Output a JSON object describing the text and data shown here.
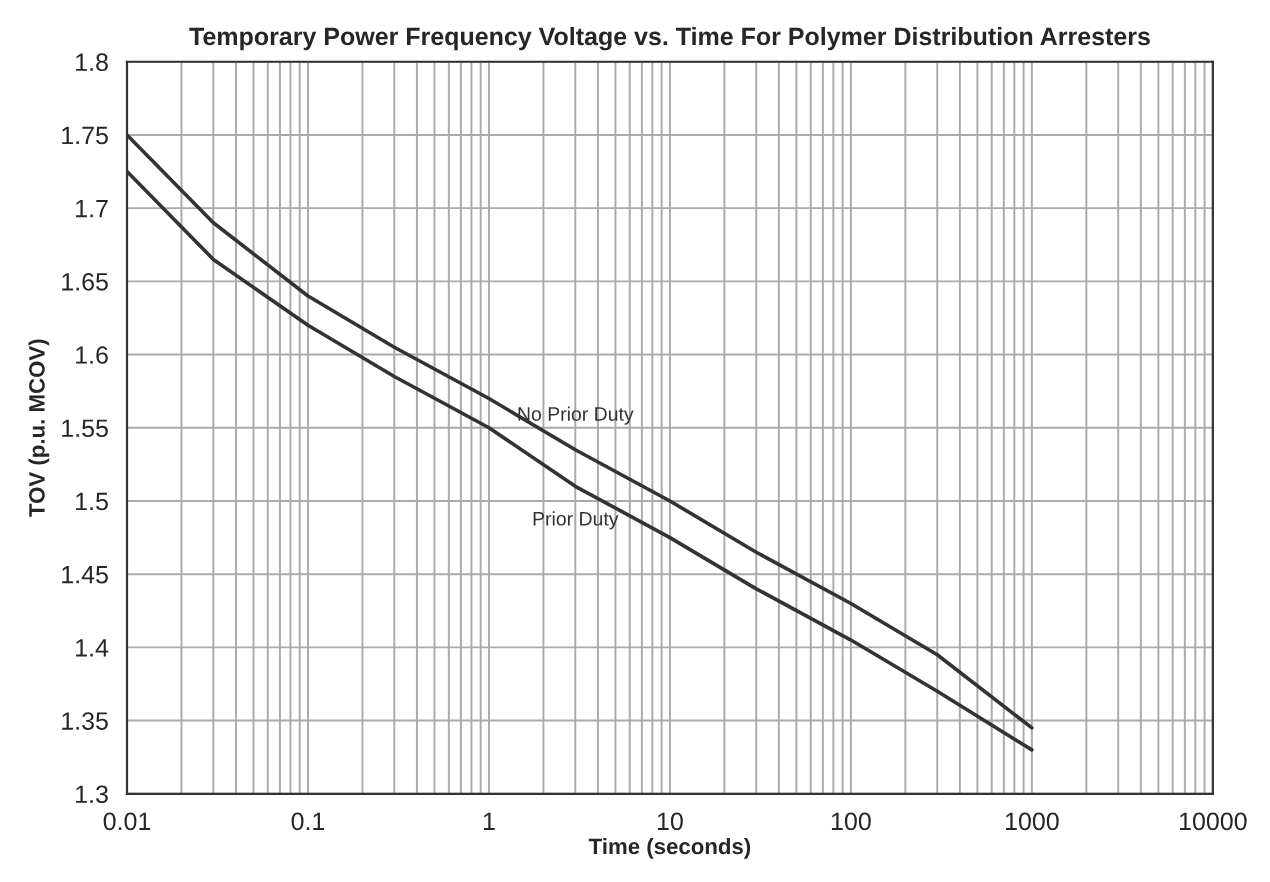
{
  "chart_data": {
    "type": "line",
    "title": "Temporary Power Frequency Voltage vs. Time For Polymer Distribution Arresters",
    "xlabel": "Time (seconds)",
    "ylabel": "TOV (p.u. MCOV)",
    "x": [
      0.01,
      0.03,
      0.1,
      0.3,
      1,
      3,
      10,
      30,
      100,
      300,
      1000
    ],
    "series": [
      {
        "name": "No Prior Duty",
        "color": "#333333",
        "values": [
          1.75,
          1.69,
          1.64,
          1.605,
          1.57,
          1.535,
          1.5,
          1.465,
          1.43,
          1.395,
          1.345
        ]
      },
      {
        "name": "Prior Duty",
        "color": "#333333",
        "values": [
          1.725,
          1.665,
          1.62,
          1.585,
          1.55,
          1.51,
          1.475,
          1.44,
          1.405,
          1.37,
          1.33
        ]
      }
    ],
    "log": "x",
    "xlim": [
      0.01,
      10000
    ],
    "xticks": [
      0.01,
      0.1,
      1,
      10,
      100,
      1000,
      10000
    ],
    "ylim": [
      1.3,
      1.8
    ],
    "yticks": [
      1.3,
      1.35,
      1.4,
      1.45,
      1.5,
      1.55,
      1.6,
      1.65,
      1.7,
      1.75,
      1.8
    ],
    "grid": true,
    "legend": false,
    "line_style": "solid",
    "marker": "none"
  }
}
